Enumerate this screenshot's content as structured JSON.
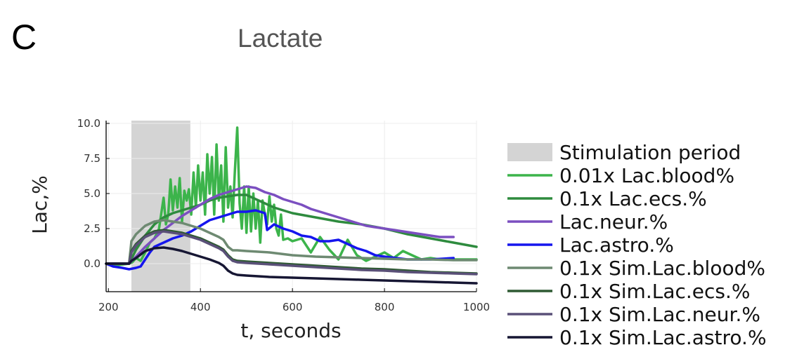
{
  "panel_label": "C",
  "chart_data": {
    "type": "line",
    "title": "Lactate",
    "xlabel": "t, seconds",
    "ylabel": "Lac,%",
    "xlim": [
      195,
      1000
    ],
    "ylim": [
      -2.0,
      10.2
    ],
    "x_ticks": [
      200,
      400,
      600,
      800,
      1000
    ],
    "x_tick_labels": [
      "200",
      "400",
      "600",
      "800",
      "1000"
    ],
    "y_ticks": [
      0.0,
      2.5,
      5.0,
      7.5,
      10.0
    ],
    "y_tick_labels": [
      "0.0",
      "2.5",
      "5.0",
      "7.5",
      "10.0"
    ],
    "grid": true,
    "legend_position": "outside right",
    "stimulation": {
      "label": "Stimulation period",
      "start": 250,
      "end": 378,
      "color": "#d4d4d4"
    },
    "series": [
      {
        "name": "0.01x Lac.blood%",
        "color": "#3cb44b",
        "x": [
          195,
          220,
          245,
          252,
          260,
          270,
          280,
          290,
          300,
          310,
          320,
          325,
          330,
          335,
          340,
          345,
          350,
          355,
          360,
          365,
          370,
          375,
          380,
          385,
          390,
          395,
          400,
          405,
          410,
          415,
          420,
          425,
          430,
          435,
          440,
          445,
          450,
          455,
          460,
          465,
          470,
          475,
          480,
          485,
          490,
          495,
          500,
          505,
          510,
          515,
          520,
          525,
          530,
          535,
          540,
          545,
          550,
          555,
          560,
          565,
          570,
          575,
          580,
          590,
          600,
          620,
          640,
          660,
          680,
          700,
          720,
          740,
          760,
          780,
          800,
          820,
          840,
          860,
          880,
          900,
          920,
          940,
          960,
          980,
          1000
        ],
        "y": [
          0.0,
          -0.1,
          0.0,
          0.1,
          0.4,
          0.2,
          0.8,
          1.5,
          1.8,
          2.5,
          4.7,
          2.8,
          3.5,
          6.0,
          3.8,
          5.5,
          4.0,
          6.1,
          3.0,
          5.2,
          4.5,
          5.3,
          3.5,
          6.5,
          4.0,
          7.0,
          4.5,
          6.5,
          3.5,
          7.8,
          5.0,
          7.6,
          3.5,
          8.5,
          4.5,
          7.0,
          3.0,
          8.3,
          4.0,
          5.5,
          3.3,
          6.7,
          9.7,
          4.3,
          2.5,
          5.5,
          2.2,
          5.5,
          2.3,
          5.0,
          2.5,
          4.5,
          1.5,
          4.5,
          3.5,
          2.8,
          4.8,
          3.0,
          4.2,
          2.5,
          2.0,
          3.5,
          1.7,
          1.8,
          1.6,
          1.8,
          0.8,
          1.9,
          1.0,
          0.3,
          1.7,
          0.6,
          0.2,
          0.5,
          0.8,
          0.4,
          0.9,
          0.6,
          0.3,
          0.4,
          0.3,
          0.3,
          0.3,
          0.3,
          0.3
        ]
      },
      {
        "name": "0.1x Lac.ecs.%",
        "color": "#2e8b3e",
        "x": [
          245,
          260,
          280,
          300,
          320,
          340,
          360,
          380,
          400,
          420,
          440,
          460,
          480,
          500,
          520,
          540,
          560,
          580,
          600,
          650,
          700,
          750,
          800,
          850,
          900,
          950,
          1000
        ],
        "y": [
          0.0,
          1.0,
          2.0,
          2.8,
          3.3,
          3.6,
          3.8,
          4.0,
          4.2,
          4.5,
          4.7,
          4.8,
          4.9,
          4.9,
          4.6,
          4.3,
          4.0,
          3.8,
          3.6,
          3.3,
          3.0,
          2.8,
          2.5,
          2.1,
          1.8,
          1.5,
          1.2
        ]
      },
      {
        "name": "Lac.neur.%",
        "color": "#7b4fc0",
        "x": [
          245,
          260,
          280,
          300,
          320,
          340,
          360,
          380,
          400,
          420,
          440,
          460,
          480,
          500,
          520,
          540,
          560,
          580,
          600,
          620,
          640,
          660,
          680,
          700,
          720,
          740,
          760,
          780,
          800,
          820,
          840,
          860,
          880,
          900,
          920,
          940,
          950
        ],
        "y": [
          0.0,
          0.5,
          1.2,
          1.8,
          2.4,
          2.9,
          3.4,
          3.8,
          4.2,
          4.6,
          4.9,
          5.1,
          5.3,
          5.5,
          5.4,
          5.1,
          4.9,
          4.6,
          4.4,
          4.2,
          3.9,
          3.7,
          3.5,
          3.3,
          3.1,
          2.9,
          2.7,
          2.6,
          2.5,
          2.4,
          2.3,
          2.2,
          2.1,
          2.0,
          1.9,
          1.9,
          1.9
        ]
      },
      {
        "name": "Lac.astro.%",
        "color": "#1515ee",
        "x": [
          195,
          210,
          230,
          245,
          260,
          270,
          280,
          290,
          300,
          320,
          340,
          360,
          380,
          400,
          420,
          440,
          460,
          480,
          500,
          520,
          540,
          545,
          560,
          580,
          600,
          620,
          640,
          660,
          680,
          700,
          720,
          740,
          760,
          780,
          800,
          850,
          900,
          950
        ],
        "y": [
          0.0,
          -0.2,
          -0.3,
          -0.4,
          -0.3,
          -0.2,
          0.3,
          0.8,
          1.2,
          1.5,
          1.8,
          2.0,
          2.3,
          2.7,
          3.1,
          3.3,
          3.5,
          3.7,
          3.7,
          3.8,
          3.6,
          2.4,
          2.8,
          2.5,
          2.3,
          2.0,
          1.9,
          1.6,
          1.6,
          1.7,
          1.4,
          1.1,
          0.9,
          0.6,
          0.5,
          0.3,
          0.3,
          0.4
        ]
      },
      {
        "name": "0.1x Sim.Lac.blood%",
        "color": "#6e8a72",
        "x": [
          195,
          245,
          250,
          260,
          280,
          300,
          320,
          340,
          360,
          380,
          400,
          420,
          440,
          450,
          460,
          470,
          480,
          500,
          550,
          600,
          650,
          700,
          750,
          800,
          850,
          900,
          950,
          1000
        ],
        "y": [
          0.0,
          0.0,
          1.6,
          2.1,
          2.7,
          3.0,
          3.1,
          3.0,
          2.9,
          2.7,
          2.5,
          2.2,
          1.9,
          1.7,
          1.2,
          0.95,
          0.95,
          0.9,
          0.8,
          0.6,
          0.5,
          0.45,
          0.4,
          0.35,
          0.3,
          0.3,
          0.25,
          0.25
        ]
      },
      {
        "name": "0.1x Sim.Lac.ecs.%",
        "color": "#2f5a33",
        "x": [
          195,
          245,
          250,
          260,
          280,
          300,
          320,
          340,
          360,
          380,
          400,
          420,
          440,
          450,
          460,
          470,
          480,
          500,
          550,
          600,
          650,
          700,
          750,
          800,
          850,
          900,
          950,
          1000
        ],
        "y": [
          0.0,
          0.0,
          0.9,
          1.4,
          2.0,
          2.3,
          2.4,
          2.3,
          2.2,
          2.0,
          1.8,
          1.5,
          1.2,
          1.0,
          0.6,
          0.3,
          0.2,
          0.15,
          0.05,
          -0.05,
          -0.15,
          -0.25,
          -0.35,
          -0.4,
          -0.5,
          -0.6,
          -0.65,
          -0.7
        ]
      },
      {
        "name": "0.1x Sim.Lac.neur.%",
        "color": "#5a5078",
        "x": [
          195,
          245,
          250,
          260,
          280,
          300,
          320,
          340,
          360,
          380,
          400,
          420,
          440,
          450,
          460,
          470,
          480,
          500,
          550,
          600,
          650,
          700,
          750,
          800,
          850,
          900,
          950,
          1000
        ],
        "y": [
          0.0,
          0.0,
          0.8,
          1.3,
          1.9,
          2.2,
          2.3,
          2.2,
          2.1,
          1.9,
          1.7,
          1.4,
          1.1,
          0.9,
          0.5,
          0.2,
          0.1,
          0.05,
          -0.05,
          -0.15,
          -0.25,
          -0.35,
          -0.45,
          -0.5,
          -0.6,
          -0.65,
          -0.7,
          -0.75
        ]
      },
      {
        "name": "0.1x Sim.Lac.astro.%",
        "color": "#161633",
        "x": [
          195,
          245,
          250,
          260,
          280,
          300,
          320,
          340,
          360,
          380,
          400,
          420,
          440,
          450,
          460,
          470,
          480,
          500,
          550,
          600,
          650,
          700,
          750,
          800,
          850,
          900,
          950,
          1000
        ],
        "y": [
          0.0,
          0.0,
          0.2,
          0.4,
          0.9,
          1.1,
          1.15,
          1.05,
          0.9,
          0.7,
          0.5,
          0.3,
          0.05,
          -0.15,
          -0.5,
          -0.7,
          -0.8,
          -0.85,
          -0.95,
          -1.0,
          -1.05,
          -1.1,
          -1.15,
          -1.2,
          -1.25,
          -1.3,
          -1.35,
          -1.4
        ]
      }
    ]
  }
}
